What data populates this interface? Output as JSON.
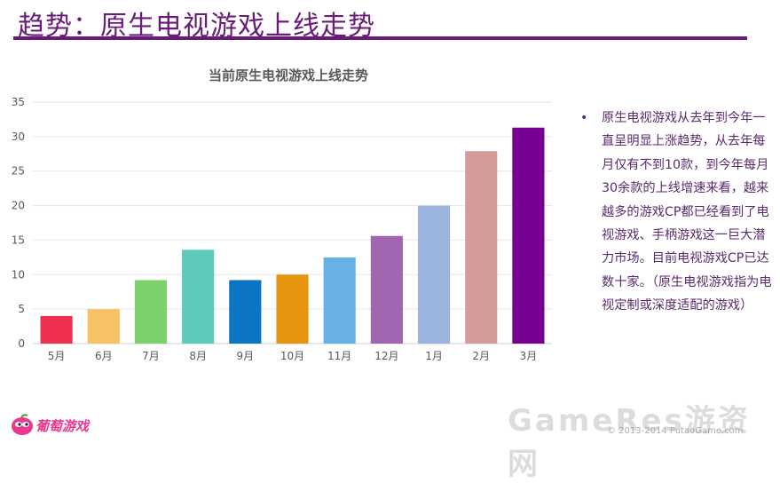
{
  "slide": {
    "title": "趋势：原生电视游戏上线走势"
  },
  "colors": {
    "title": "#6a1b7a",
    "text": "#5b2a6e",
    "bars": [
      "#f0304f",
      "#f5c265",
      "#7dd16a",
      "#5ccbbc",
      "#0a75c2",
      "#e7950e",
      "#68b1e6",
      "#a265b0",
      "#9bb4de",
      "#d49b9b",
      "#760091"
    ]
  },
  "chart_data": {
    "type": "bar",
    "title": "当前原生电视游戏上线走势",
    "categories": [
      "5月",
      "6月",
      "7月",
      "8月",
      "9月",
      "10月",
      "11月",
      "12月",
      "1月",
      "2月",
      "3月"
    ],
    "values": [
      4,
      5,
      9.2,
      13.6,
      9.2,
      10,
      12.5,
      15.6,
      20,
      27.9,
      31.3
    ],
    "ylim": [
      0,
      35
    ],
    "yticks": [
      0,
      5,
      10,
      15,
      20,
      25,
      30,
      35
    ],
    "xlabel": "",
    "ylabel": "",
    "grid": true
  },
  "bullet": {
    "text": "原生电视游戏从去年到今年一直呈明显上涨趋势，从去年每月仅有不到10款，到今年每月30余款的上线增速来看，越来越多的游戏CP都已经看到了电视游戏、手柄游戏这一巨大潜力市场。目前电视游戏CP已达数十家。（原生电视游戏指为电视定制或深度适配的游戏）"
  },
  "logo": {
    "text": "葡萄游戏"
  },
  "watermark": {
    "text": "GameRes游资网"
  },
  "footer": {
    "copyright": "© 2013-2014 PutaoGame.com"
  }
}
